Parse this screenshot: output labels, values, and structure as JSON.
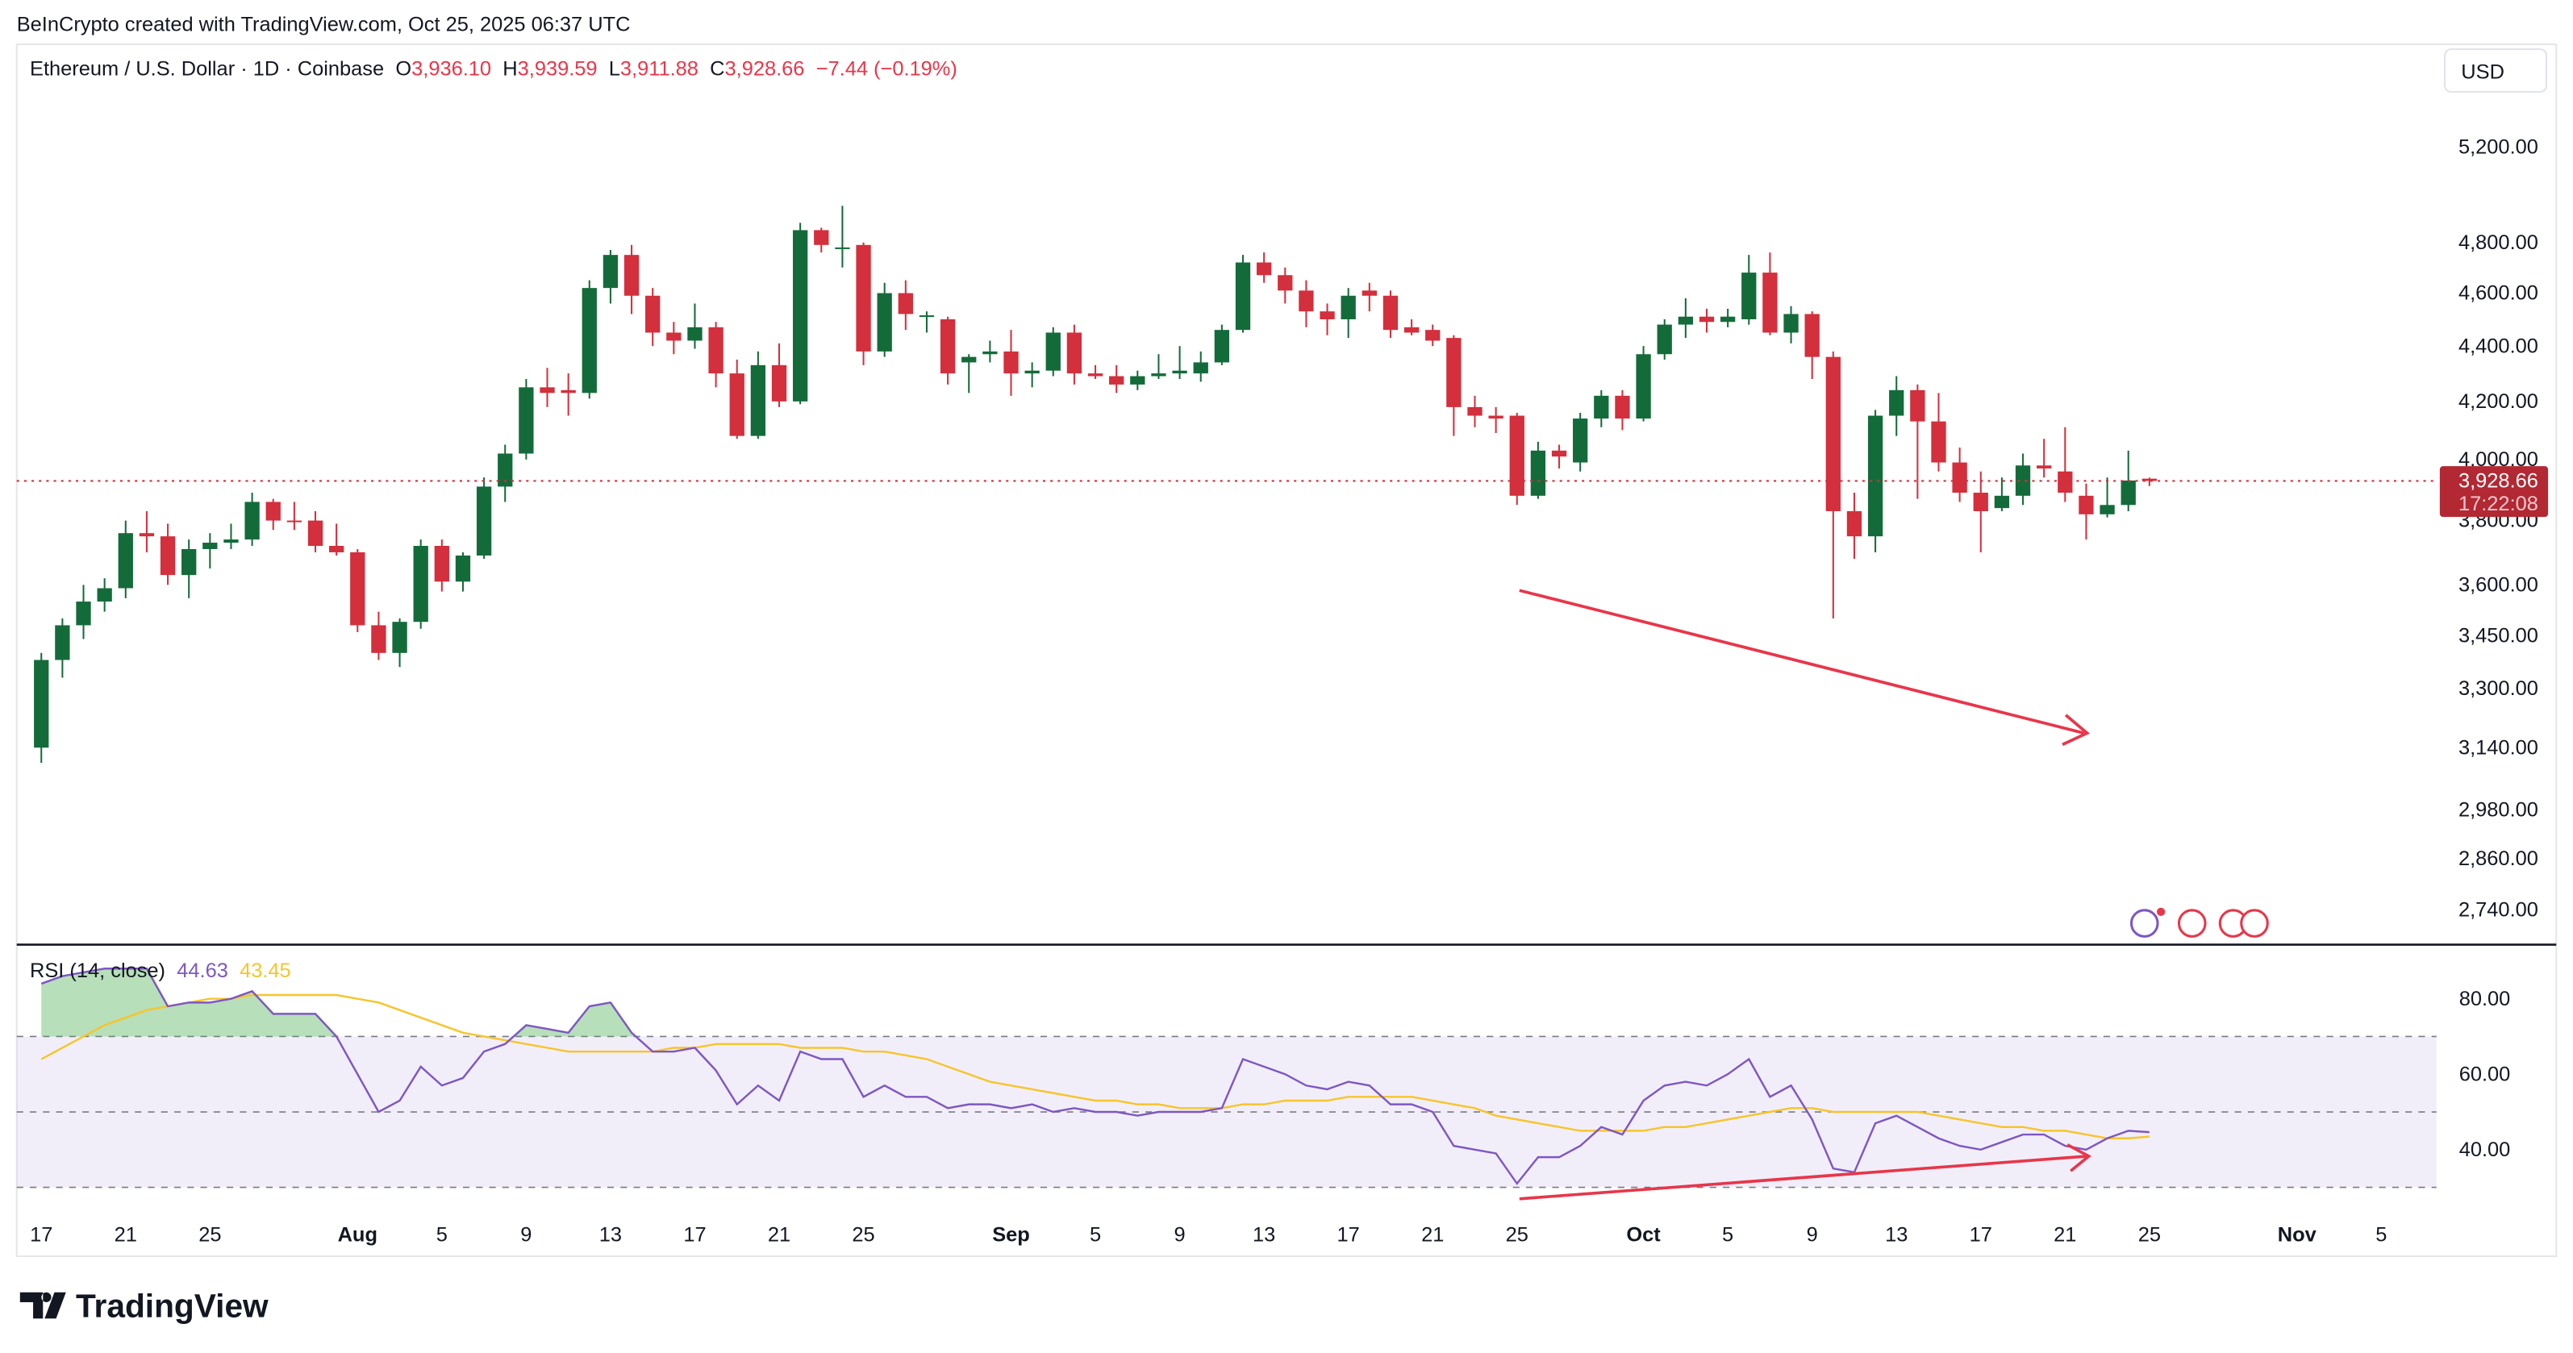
{
  "caption": "BeInCrypto created with TradingView.com, Oct 25, 2025 06:37 UTC",
  "legend": {
    "symbol": "Ethereum / U.S. Dollar · 1D · Coinbase",
    "o_label": "O",
    "o": "3,936.10",
    "h_label": "H",
    "h": "3,939.59",
    "l_label": "L",
    "l": "3,911.88",
    "c_label": "C",
    "c": "3,928.66",
    "change": "−7.44 (−0.19%)"
  },
  "currency_button": "USD",
  "last_price": {
    "value": "3,928.66",
    "countdown": "17:22:08"
  },
  "rsi": {
    "title": "RSI (14, close)",
    "value": "44.63",
    "ma_value": "43.45"
  },
  "brand": "TradingView",
  "colors": {
    "up": "#146b3a",
    "down": "#d32f3c",
    "rsi": "#7e57c2",
    "rsi_ma": "#f7c52b",
    "arrow": "#e8364a",
    "band": "#7e57c2"
  },
  "chart_data": [
    {
      "type": "candlestick",
      "scale": "log",
      "y_ticks": [
        "5,200.00",
        "4,800.00",
        "4,600.00",
        "4,400.00",
        "4,200.00",
        "4,000.00",
        "3,800.00",
        "3,600.00",
        "3,450.00",
        "3,300.00",
        "3,140.00",
        "2,980.00",
        "2,860.00",
        "2,740.00"
      ],
      "x_ticks": [
        {
          "label": "17",
          "date": "2025-07-17"
        },
        {
          "label": "21",
          "date": "2025-07-21"
        },
        {
          "label": "25",
          "date": "2025-07-25"
        },
        {
          "label": "Aug",
          "date": "2025-08-01"
        },
        {
          "label": "5",
          "date": "2025-08-05"
        },
        {
          "label": "9",
          "date": "2025-08-09"
        },
        {
          "label": "13",
          "date": "2025-08-13"
        },
        {
          "label": "17",
          "date": "2025-08-17"
        },
        {
          "label": "21",
          "date": "2025-08-21"
        },
        {
          "label": "25",
          "date": "2025-08-25"
        },
        {
          "label": "Sep",
          "date": "2025-09-01"
        },
        {
          "label": "5",
          "date": "2025-09-05"
        },
        {
          "label": "9",
          "date": "2025-09-09"
        },
        {
          "label": "13",
          "date": "2025-09-13"
        },
        {
          "label": "17",
          "date": "2025-09-17"
        },
        {
          "label": "21",
          "date": "2025-09-21"
        },
        {
          "label": "25",
          "date": "2025-09-25"
        },
        {
          "label": "Oct",
          "date": "2025-10-01"
        },
        {
          "label": "5",
          "date": "2025-10-05"
        },
        {
          "label": "9",
          "date": "2025-10-09"
        },
        {
          "label": "13",
          "date": "2025-10-13"
        },
        {
          "label": "17",
          "date": "2025-10-17"
        },
        {
          "label": "21",
          "date": "2025-10-21"
        },
        {
          "label": "25",
          "date": "2025-10-25"
        },
        {
          "label": "Nov",
          "date": "2025-11-01"
        },
        {
          "label": "5",
          "date": "2025-11-05"
        }
      ],
      "last_price": 3928.66,
      "candles_fields": [
        "date",
        "open",
        "high",
        "low",
        "close"
      ],
      "candles": [
        [
          "2025-07-17",
          3140,
          3400,
          3100,
          3380
        ],
        [
          "2025-07-18",
          3380,
          3500,
          3330,
          3480
        ],
        [
          "2025-07-19",
          3480,
          3600,
          3440,
          3550
        ],
        [
          "2025-07-20",
          3550,
          3620,
          3520,
          3590
        ],
        [
          "2025-07-21",
          3590,
          3800,
          3560,
          3760
        ],
        [
          "2025-07-22",
          3760,
          3830,
          3700,
          3750
        ],
        [
          "2025-07-23",
          3750,
          3790,
          3600,
          3630
        ],
        [
          "2025-07-24",
          3630,
          3740,
          3560,
          3710
        ],
        [
          "2025-07-25",
          3710,
          3760,
          3650,
          3730
        ],
        [
          "2025-07-26",
          3730,
          3790,
          3710,
          3740
        ],
        [
          "2025-07-27",
          3740,
          3890,
          3720,
          3860
        ],
        [
          "2025-07-28",
          3860,
          3870,
          3770,
          3800
        ],
        [
          "2025-07-29",
          3800,
          3860,
          3770,
          3795
        ],
        [
          "2025-07-30",
          3800,
          3830,
          3700,
          3720
        ],
        [
          "2025-07-31",
          3720,
          3790,
          3690,
          3700
        ],
        [
          "2025-08-01",
          3700,
          3710,
          3460,
          3480
        ],
        [
          "2025-08-02",
          3480,
          3520,
          3380,
          3400
        ],
        [
          "2025-08-03",
          3400,
          3500,
          3360,
          3490
        ],
        [
          "2025-08-04",
          3490,
          3740,
          3470,
          3720
        ],
        [
          "2025-08-05",
          3720,
          3740,
          3580,
          3610
        ],
        [
          "2025-08-06",
          3610,
          3700,
          3580,
          3690
        ],
        [
          "2025-08-07",
          3690,
          3940,
          3680,
          3910
        ],
        [
          "2025-08-08",
          3910,
          4050,
          3860,
          4020
        ],
        [
          "2025-08-09",
          4020,
          4280,
          4000,
          4250
        ],
        [
          "2025-08-10",
          4250,
          4320,
          4180,
          4230
        ],
        [
          "2025-08-11",
          4240,
          4300,
          4150,
          4230
        ],
        [
          "2025-08-12",
          4230,
          4650,
          4210,
          4620
        ],
        [
          "2025-08-13",
          4620,
          4770,
          4560,
          4750
        ],
        [
          "2025-08-14",
          4750,
          4790,
          4520,
          4590
        ],
        [
          "2025-08-15",
          4590,
          4620,
          4400,
          4450
        ],
        [
          "2025-08-16",
          4450,
          4490,
          4370,
          4420
        ],
        [
          "2025-08-17",
          4420,
          4560,
          4390,
          4470
        ],
        [
          "2025-08-18",
          4470,
          4490,
          4250,
          4300
        ],
        [
          "2025-08-19",
          4300,
          4350,
          4070,
          4080
        ],
        [
          "2025-08-20",
          4080,
          4380,
          4070,
          4330
        ],
        [
          "2025-08-21",
          4330,
          4410,
          4180,
          4200
        ],
        [
          "2025-08-22",
          4200,
          4880,
          4190,
          4850
        ],
        [
          "2025-08-23",
          4850,
          4860,
          4760,
          4790
        ],
        [
          "2025-08-24",
          4780,
          4950,
          4700,
          4780
        ],
        [
          "2025-08-25",
          4790,
          4800,
          4330,
          4380
        ],
        [
          "2025-08-26",
          4380,
          4640,
          4360,
          4600
        ],
        [
          "2025-08-27",
          4600,
          4650,
          4460,
          4520
        ],
        [
          "2025-08-28",
          4510,
          4530,
          4450,
          4515
        ],
        [
          "2025-08-29",
          4500,
          4510,
          4260,
          4300
        ],
        [
          "2025-08-30",
          4340,
          4370,
          4230,
          4360
        ],
        [
          "2025-08-31",
          4370,
          4420,
          4340,
          4380
        ],
        [
          "2025-09-01",
          4380,
          4460,
          4220,
          4300
        ],
        [
          "2025-09-02",
          4300,
          4340,
          4250,
          4310
        ],
        [
          "2025-09-03",
          4310,
          4470,
          4290,
          4450
        ],
        [
          "2025-09-04",
          4450,
          4480,
          4260,
          4300
        ],
        [
          "2025-09-05",
          4300,
          4330,
          4280,
          4290
        ],
        [
          "2025-09-06",
          4290,
          4330,
          4230,
          4260
        ],
        [
          "2025-09-07",
          4260,
          4310,
          4240,
          4290
        ],
        [
          "2025-09-08",
          4290,
          4370,
          4280,
          4300
        ],
        [
          "2025-09-09",
          4300,
          4400,
          4280,
          4310
        ],
        [
          "2025-09-10",
          4300,
          4380,
          4270,
          4340
        ],
        [
          "2025-09-11",
          4340,
          4480,
          4330,
          4460
        ],
        [
          "2025-09-12",
          4460,
          4750,
          4450,
          4720
        ],
        [
          "2025-09-13",
          4720,
          4760,
          4640,
          4670
        ],
        [
          "2025-09-14",
          4670,
          4700,
          4560,
          4610
        ],
        [
          "2025-09-15",
          4610,
          4650,
          4470,
          4530
        ],
        [
          "2025-09-16",
          4530,
          4560,
          4440,
          4500
        ],
        [
          "2025-09-17",
          4500,
          4620,
          4430,
          4590
        ],
        [
          "2025-09-18",
          4610,
          4640,
          4530,
          4590
        ],
        [
          "2025-09-19",
          4590,
          4610,
          4430,
          4460
        ],
        [
          "2025-09-20",
          4470,
          4500,
          4440,
          4450
        ],
        [
          "2025-09-21",
          4460,
          4480,
          4400,
          4420
        ],
        [
          "2025-09-22",
          4430,
          4440,
          4080,
          4180
        ],
        [
          "2025-09-23",
          4180,
          4220,
          4110,
          4150
        ],
        [
          "2025-09-24",
          4150,
          4180,
          4090,
          4140
        ],
        [
          "2025-09-25",
          4150,
          4160,
          3850,
          3880
        ],
        [
          "2025-09-26",
          3880,
          4060,
          3870,
          4030
        ],
        [
          "2025-09-27",
          4030,
          4050,
          3970,
          4010
        ],
        [
          "2025-09-28",
          3990,
          4160,
          3960,
          4140
        ],
        [
          "2025-09-29",
          4140,
          4240,
          4110,
          4220
        ],
        [
          "2025-09-30",
          4220,
          4240,
          4100,
          4140
        ],
        [
          "2025-10-01",
          4140,
          4400,
          4130,
          4370
        ],
        [
          "2025-10-02",
          4370,
          4500,
          4350,
          4480
        ],
        [
          "2025-10-03",
          4480,
          4580,
          4430,
          4510
        ],
        [
          "2025-10-04",
          4510,
          4540,
          4450,
          4490
        ],
        [
          "2025-10-05",
          4490,
          4540,
          4470,
          4510
        ],
        [
          "2025-10-06",
          4500,
          4750,
          4480,
          4680
        ],
        [
          "2025-10-07",
          4680,
          4760,
          4440,
          4450
        ],
        [
          "2025-10-08",
          4450,
          4550,
          4410,
          4520
        ],
        [
          "2025-10-09",
          4520,
          4530,
          4280,
          4360
        ],
        [
          "2025-10-10",
          4360,
          4380,
          3500,
          3830
        ],
        [
          "2025-10-11",
          3830,
          3890,
          3680,
          3750
        ],
        [
          "2025-10-12",
          3750,
          4170,
          3700,
          4150
        ],
        [
          "2025-10-13",
          4150,
          4290,
          4080,
          4240
        ],
        [
          "2025-10-14",
          4240,
          4260,
          3870,
          4130
        ],
        [
          "2025-10-15",
          4130,
          4230,
          3960,
          3990
        ],
        [
          "2025-10-16",
          3990,
          4040,
          3860,
          3890
        ],
        [
          "2025-10-17",
          3890,
          3960,
          3700,
          3830
        ],
        [
          "2025-10-18",
          3840,
          3940,
          3830,
          3880
        ],
        [
          "2025-10-19",
          3880,
          4020,
          3850,
          3980
        ],
        [
          "2025-10-20",
          3980,
          4070,
          3940,
          3970
        ],
        [
          "2025-10-21",
          3960,
          4110,
          3860,
          3890
        ],
        [
          "2025-10-22",
          3880,
          3920,
          3740,
          3820
        ],
        [
          "2025-10-23",
          3820,
          3940,
          3810,
          3850
        ],
        [
          "2025-10-24",
          3850,
          4030,
          3830,
          3930
        ],
        [
          "2025-10-25",
          3936.1,
          3939.59,
          3911.88,
          3928.66
        ]
      ]
    },
    {
      "type": "line",
      "title": "RSI (14, close)",
      "y_ticks": [
        "80.00",
        "60.00",
        "40.00"
      ],
      "bands": [
        70,
        50,
        30
      ],
      "ylim": [
        26,
        89
      ],
      "series": [
        {
          "name": "RSI",
          "values": [
            84,
            86,
            87,
            88,
            88,
            88,
            78,
            79,
            79,
            80,
            82,
            76,
            76,
            76,
            70,
            60,
            50,
            53,
            62,
            57,
            59,
            66,
            68,
            73,
            72,
            71,
            78,
            79,
            71,
            66,
            66,
            67,
            61,
            52,
            57,
            53,
            66,
            64,
            64,
            54,
            57,
            54,
            54,
            51,
            52,
            52,
            51,
            52,
            50,
            51,
            50,
            50,
            49,
            50,
            50,
            50,
            51,
            64,
            62,
            60,
            57,
            56,
            58,
            57,
            52,
            52,
            50,
            41,
            40,
            39,
            31,
            38,
            38,
            41,
            46,
            44,
            53,
            57,
            58,
            57,
            60,
            64,
            54,
            57,
            48,
            35,
            34,
            47,
            49,
            46,
            43,
            41,
            40,
            42,
            44,
            44,
            41,
            40,
            43,
            45,
            44.63
          ]
        },
        {
          "name": "RSI-based MA",
          "values": [
            64,
            67,
            70,
            73,
            75,
            77,
            78,
            79,
            80,
            80,
            81,
            81,
            81,
            81,
            81,
            80,
            79,
            77,
            75,
            73,
            71,
            70,
            69,
            68,
            67,
            66,
            66,
            66,
            66,
            66,
            67,
            67,
            68,
            68,
            68,
            68,
            67,
            67,
            67,
            66,
            66,
            65,
            64,
            62,
            60,
            58,
            57,
            56,
            55,
            54,
            53,
            53,
            52,
            52,
            51,
            51,
            51,
            52,
            52,
            53,
            53,
            53,
            54,
            54,
            54,
            54,
            53,
            52,
            51,
            49,
            48,
            47,
            46,
            45,
            45,
            45,
            45,
            46,
            46,
            47,
            48,
            49,
            50,
            51,
            51,
            50,
            50,
            50,
            50,
            50,
            49,
            48,
            47,
            46,
            46,
            45,
            45,
            44,
            43,
            43,
            43.45
          ]
        }
      ]
    }
  ]
}
